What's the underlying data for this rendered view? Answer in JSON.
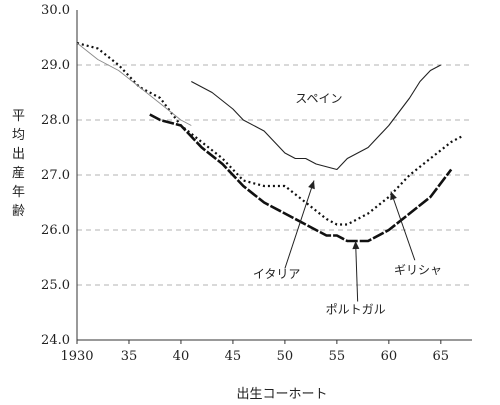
{
  "chart_data": {
    "type": "line",
    "xlabel": "出生コーホート",
    "ylabel": "平均出産年齢",
    "xlim": [
      1930,
      1968
    ],
    "ylim": [
      24.0,
      30.0
    ],
    "y_ticks": [
      24.0,
      25.0,
      26.0,
      27.0,
      28.0,
      29.0,
      30.0
    ],
    "y_tick_labels": [
      "24.0",
      "25.0",
      "26.0",
      "27.0",
      "28.0",
      "29.0",
      "30.0"
    ],
    "x_ticks": [
      1930,
      1935,
      1940,
      1945,
      1950,
      1955,
      1960,
      1965
    ],
    "x_tick_labels": [
      "1930",
      "35",
      "40",
      "45",
      "50",
      "55",
      "60",
      "65"
    ],
    "grid": "horizontal dashed",
    "series": [
      {
        "name": "スペイン",
        "style": "thin",
        "x": [
          1941,
          1943,
          1945,
          1946,
          1948,
          1950,
          1951,
          1952,
          1953,
          1955,
          1956,
          1958,
          1960,
          1962,
          1963,
          1964,
          1965
        ],
        "y": [
          28.7,
          28.5,
          28.2,
          28.0,
          27.8,
          27.4,
          27.3,
          27.3,
          27.2,
          27.1,
          27.3,
          27.5,
          27.9,
          28.4,
          28.7,
          28.9,
          29.0
        ]
      },
      {
        "name": "イタリア",
        "style": "thick-dashed",
        "x": [
          1937,
          1938,
          1940,
          1942,
          1944,
          1946,
          1948,
          1950,
          1952,
          1954,
          1955,
          1956,
          1957,
          1958,
          1960,
          1962,
          1964,
          1966
        ],
        "y": [
          28.1,
          28.0,
          27.9,
          27.5,
          27.2,
          26.8,
          26.5,
          26.3,
          26.1,
          25.9,
          25.9,
          25.8,
          25.8,
          25.8,
          26.0,
          26.3,
          26.6,
          27.1
        ]
      },
      {
        "name": "ギリシャ",
        "style": "dotted",
        "x": [
          1930,
          1932,
          1934,
          1936,
          1938,
          1940,
          1942,
          1944,
          1946,
          1948,
          1950,
          1952,
          1954,
          1955,
          1956,
          1958,
          1960,
          1962,
          1964,
          1966,
          1967
        ],
        "y": [
          29.4,
          29.3,
          29.0,
          28.6,
          28.4,
          27.9,
          27.6,
          27.3,
          26.9,
          26.8,
          26.8,
          26.5,
          26.2,
          26.1,
          26.1,
          26.3,
          26.6,
          27.0,
          27.3,
          27.6,
          27.7
        ]
      },
      {
        "name": "ポルトガル",
        "style": "thin-gray",
        "x": [
          1930,
          1932,
          1934,
          1936,
          1938,
          1940,
          1941
        ],
        "y": [
          29.4,
          29.1,
          28.9,
          28.6,
          28.3,
          28.0,
          27.9
        ]
      }
    ],
    "annotations": [
      {
        "text": "スペイン",
        "series": "スペイン"
      },
      {
        "text": "イタリア",
        "series": "イタリア"
      },
      {
        "text": "ギリシャ",
        "series": "ギリシャ"
      },
      {
        "text": "ポルトガル",
        "series": "ポルトガル"
      }
    ]
  }
}
